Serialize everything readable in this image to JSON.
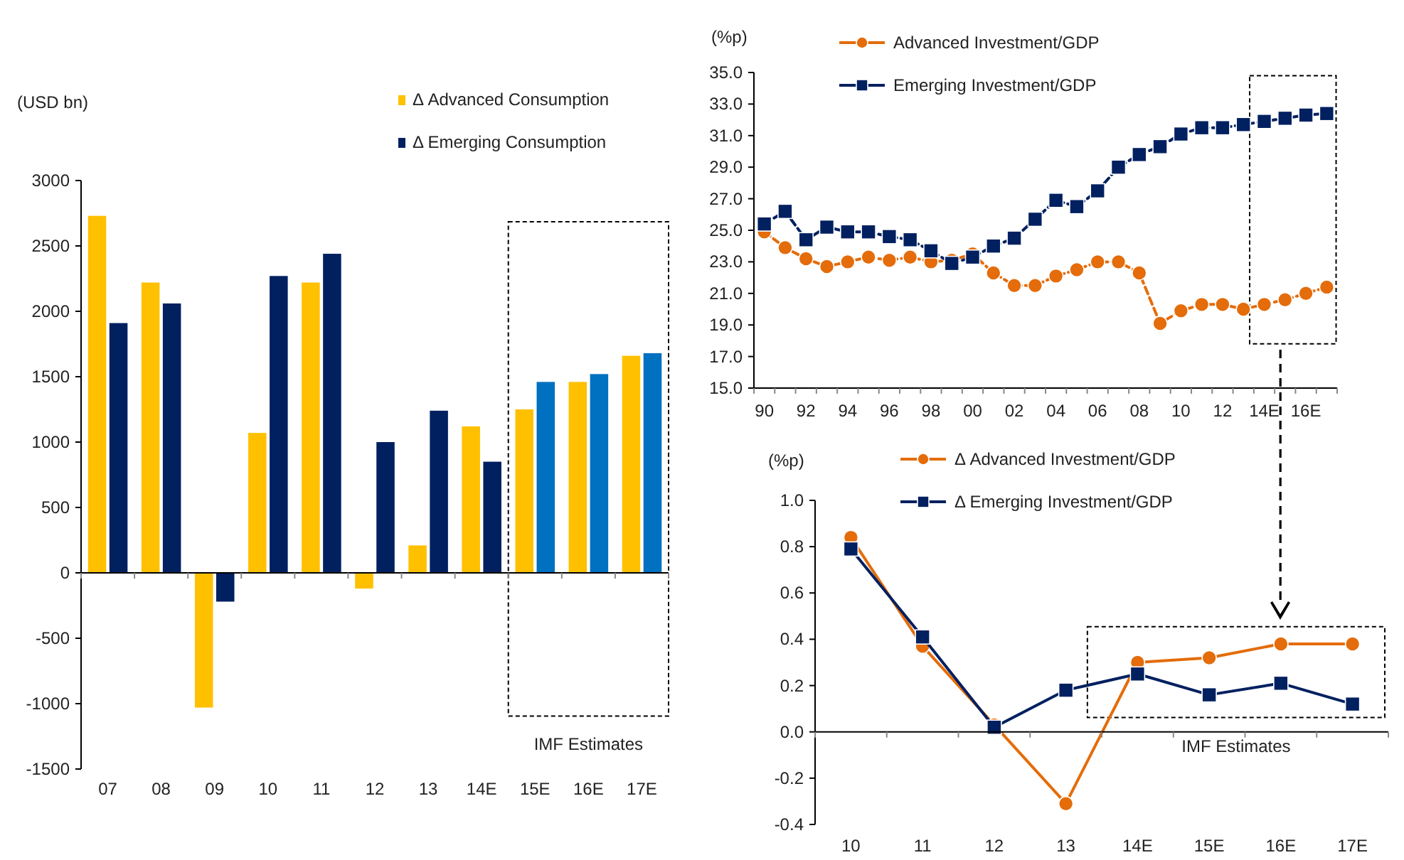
{
  "chart_data": [
    {
      "type": "bar",
      "ylabel": "(USD bn)",
      "categories": [
        "07",
        "08",
        "09",
        "10",
        "11",
        "12",
        "13",
        "14E",
        "15E",
        "16E",
        "17E"
      ],
      "series": [
        {
          "name": "Δ Advanced Consumption",
          "color": "#ffc000",
          "values": [
            2730,
            2220,
            -1030,
            1070,
            2220,
            -120,
            210,
            1120,
            1250,
            1460,
            1660
          ]
        },
        {
          "name": "Δ Emerging Consumption",
          "color": "#002060",
          "colors": [
            "#002060",
            "#002060",
            "#002060",
            "#002060",
            "#002060",
            "#002060",
            "#002060",
            "#002060",
            "#0070c0",
            "#0070c0",
            "#0070c0"
          ],
          "values": [
            1910,
            2060,
            -220,
            2270,
            2440,
            1000,
            1240,
            850,
            1460,
            1520,
            1680
          ]
        }
      ],
      "ylim": [
        -1500,
        3000
      ],
      "yticks": [
        -1500,
        -1000,
        -500,
        0,
        500,
        1000,
        1500,
        2000,
        2500,
        3000
      ],
      "legend": "top right",
      "annotations": [
        "IMF Estimates"
      ]
    },
    {
      "type": "line",
      "ylabel": "(%p)",
      "categories": [
        "90",
        null,
        "92",
        null,
        "94",
        null,
        "96",
        null,
        "98",
        null,
        "00",
        null,
        "02",
        null,
        "04",
        null,
        "06",
        null,
        "08",
        null,
        "10",
        null,
        "12",
        null,
        "14E",
        null,
        "16E",
        null
      ],
      "series": [
        {
          "name": "Advanced Investment/GDP",
          "color": "#e46c0a",
          "marker": "circle",
          "values": [
            24.9,
            23.9,
            23.2,
            22.7,
            23.0,
            23.3,
            23.1,
            23.3,
            23.0,
            23.1,
            23.5,
            22.3,
            21.5,
            21.5,
            22.1,
            22.5,
            23.0,
            23.0,
            22.3,
            19.1,
            19.9,
            20.3,
            20.3,
            20.0,
            20.3,
            20.6,
            21.0,
            21.4
          ]
        },
        {
          "name": "Emerging Investment/GDP",
          "color": "#002060",
          "marker": "square",
          "values": [
            25.4,
            26.2,
            24.4,
            25.2,
            24.9,
            24.9,
            24.6,
            24.4,
            23.7,
            22.9,
            23.3,
            24.0,
            24.5,
            25.7,
            26.9,
            26.5,
            27.5,
            29.0,
            29.8,
            30.3,
            31.1,
            31.5,
            31.5,
            31.7,
            31.9,
            32.1,
            32.3,
            32.4
          ]
        }
      ],
      "line_style": "dashed",
      "ylim": [
        15,
        35
      ],
      "yticks": [
        {
          "value": 15,
          "label": "15.0"
        },
        {
          "value": 17,
          "label": "17.0"
        },
        {
          "value": 19,
          "label": "19.0"
        },
        {
          "value": 21,
          "label": "21.0"
        },
        {
          "value": 23,
          "label": "23.0"
        },
        {
          "value": 25,
          "label": "25.0"
        },
        {
          "value": 27,
          "label": "27.0"
        },
        {
          "value": 29,
          "label": "29.0"
        },
        {
          "value": 31,
          "label": "31.0"
        },
        {
          "value": 33,
          "label": "33.0"
        },
        {
          "value": 35,
          "label": "35.0"
        }
      ],
      "legend": "top left"
    },
    {
      "type": "line",
      "ylabel": "(%p)",
      "categories": [
        "10",
        "11",
        "12",
        "13",
        "14E",
        "15E",
        "16E",
        "17E"
      ],
      "series": [
        {
          "name": "Δ Advanced Investment/GDP",
          "color": "#e46c0a",
          "marker": "circle",
          "values": [
            0.84,
            0.37,
            0.03,
            -0.31,
            0.3,
            0.32,
            0.38,
            0.38
          ]
        },
        {
          "name": "Δ Emerging Investment/GDP",
          "color": "#002060",
          "marker": "square",
          "values": [
            0.79,
            0.41,
            0.02,
            0.18,
            0.25,
            0.16,
            0.21,
            0.12
          ]
        }
      ],
      "line_style": "solid",
      "ylim": [
        -0.4,
        1.0
      ],
      "yticks": [
        {
          "value": -0.4,
          "label": "-0.4"
        },
        {
          "value": -0.2,
          "label": "-0.2"
        },
        {
          "value": 0,
          "label": "0.0"
        },
        {
          "value": 0.2,
          "label": "0.2"
        },
        {
          "value": 0.4,
          "label": "0.4"
        },
        {
          "value": 0.6,
          "label": "0.6"
        },
        {
          "value": 0.8,
          "label": "0.8"
        },
        {
          "value": 1.0,
          "label": "1.0"
        }
      ],
      "legend": "top left",
      "annotations": [
        "IMF Estimates"
      ]
    }
  ]
}
